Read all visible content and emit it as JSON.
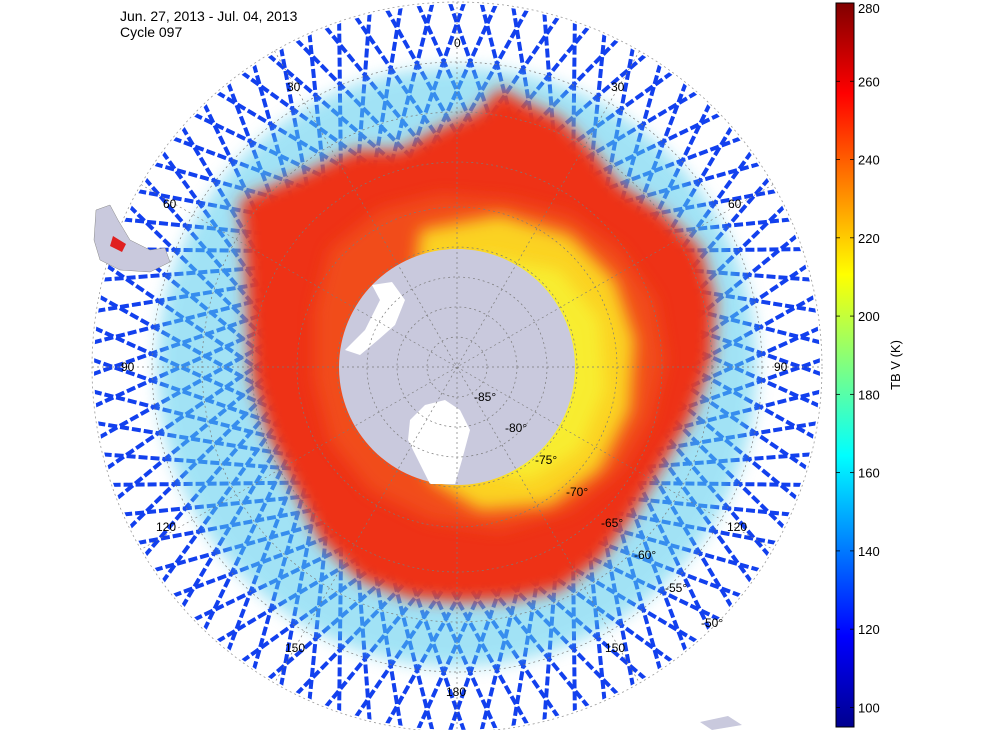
{
  "header": {
    "date_range": "Jun. 27, 2013 - Jul. 04, 2013",
    "cycle": "Cycle 097"
  },
  "map": {
    "projection": "south-polar-stereographic",
    "longitude_labels": [
      "0",
      "30",
      "30",
      "60",
      "60",
      "90",
      "90",
      "120",
      "120",
      "150",
      "150",
      "180"
    ],
    "latitude_labels": [
      "-85°",
      "-80°",
      "-75°",
      "-70°",
      "-65°",
      "-60°",
      "-55°",
      "-50°"
    ],
    "colors": {
      "land": "#c9c9dd",
      "grid": "#9a9a9a",
      "swath": "#1240ee"
    }
  },
  "colorbar": {
    "label": "TB V (K)",
    "min": 95,
    "max": 280,
    "ticks": [
      "100",
      "120",
      "140",
      "160",
      "180",
      "200",
      "220",
      "240",
      "260",
      "280"
    ],
    "colormap": "jet"
  }
}
